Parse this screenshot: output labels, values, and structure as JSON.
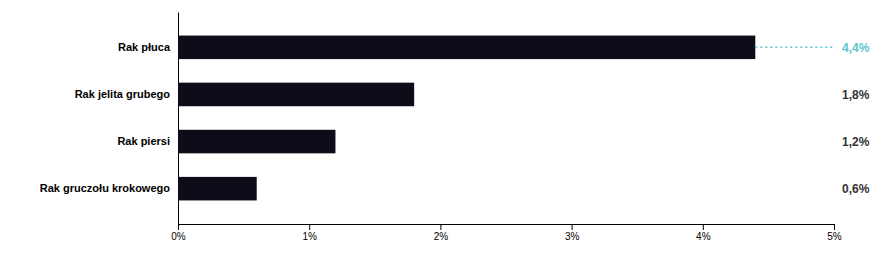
{
  "chart_data": {
    "type": "bar",
    "orientation": "horizontal",
    "categories": [
      "Rak gruczołu krokowego",
      "Rak piersi",
      "Rak jelita grubego",
      "Rak płuca"
    ],
    "values": [
      0.006,
      0.012,
      0.018,
      0.044
    ],
    "value_labels": [
      "0,6%",
      "1,2%",
      "1,8%",
      "4,4%"
    ],
    "data_labels": true,
    "color": "#0d0d1a",
    "xlim": [
      0,
      0.05
    ],
    "xticks": [
      {
        "value": 0,
        "label": "0%"
      },
      {
        "value": 0.01,
        "label": "1%"
      },
      {
        "value": 0.02,
        "label": "2%"
      },
      {
        "value": 0.03,
        "label": "3%"
      },
      {
        "value": 0.04,
        "label": "4%"
      },
      {
        "value": 0.05,
        "label": "5%"
      }
    ],
    "grid": false,
    "annotations": [
      {
        "type": "line",
        "category": "Rak płuca",
        "x": [
          0.044,
          0.05
        ],
        "color": "#5bc8c8",
        "line_style": "dotted"
      }
    ]
  }
}
